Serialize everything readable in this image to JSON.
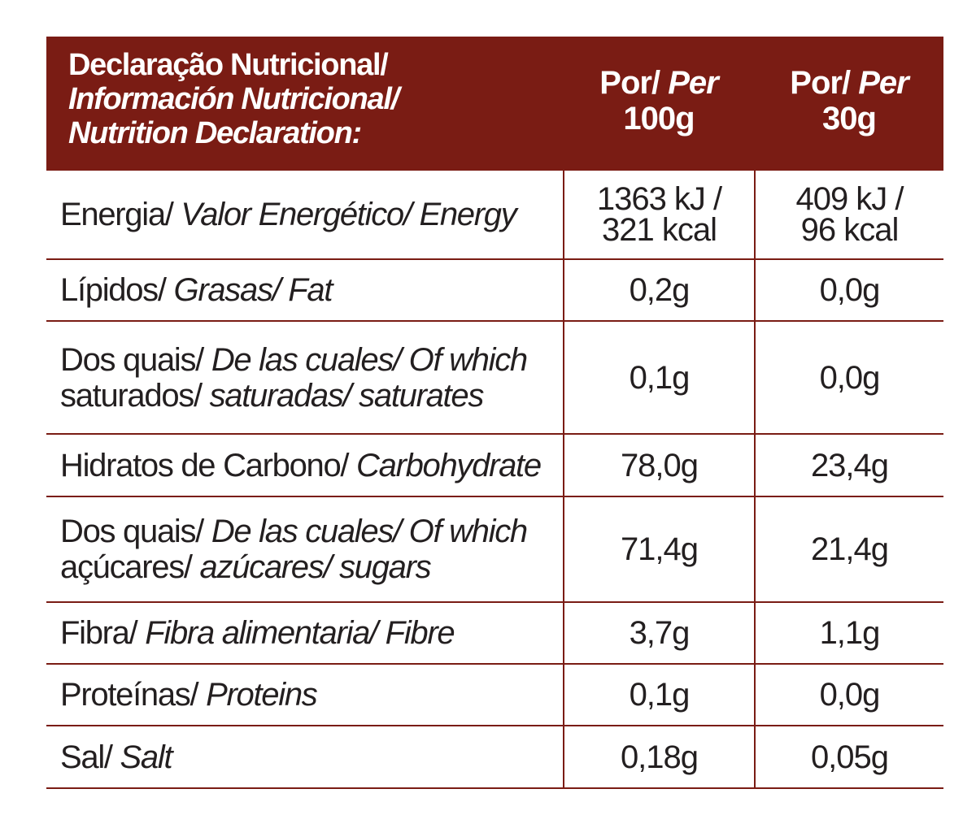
{
  "header": {
    "title_line1": "Declaração Nutricional/",
    "title_line2": "Información Nutricional/",
    "title_line3": "Nutrition Declaration:",
    "col100_por": "Por/ ",
    "col100_per": "Per",
    "col100_amount": "100g",
    "col30_por": "Por/ ",
    "col30_per": "Per",
    "col30_amount": "30g"
  },
  "rows": [
    {
      "label_plain": "Energia/ ",
      "label_italic": "Valor Energético/ Energy",
      "v100_line1": "1363 kJ /",
      "v100_line2": "321 kcal",
      "v30_line1": "409 kJ /",
      "v30_line2": "96 kcal"
    },
    {
      "label_plain": "Lípidos/ ",
      "label_italic": "Grasas/ Fat",
      "v100": "0,2g",
      "v30": "0,0g"
    },
    {
      "label1_plain": "Dos quais/ ",
      "label1_italic": "De las cuales/ Of which",
      "label2_plain": "saturados/ ",
      "label2_italic": "saturadas/ saturates",
      "v100": "0,1g",
      "v30": "0,0g"
    },
    {
      "label_plain": "Hidratos de Carbono/ ",
      "label_italic": "Carbohydrate",
      "v100": "78,0g",
      "v30": "23,4g"
    },
    {
      "label1_plain": "Dos quais/ ",
      "label1_italic": "De las cuales/ Of which",
      "label2_plain": "açúcares/ ",
      "label2_italic": "azúcares/ sugars",
      "v100": "71,4g",
      "v30": "21,4g"
    },
    {
      "label_plain": "Fibra/ ",
      "label_italic": "Fibra alimentaria/ Fibre",
      "v100": "3,7g",
      "v30": "1,1g"
    },
    {
      "label_plain": "Proteínas/ ",
      "label_italic": "Proteins",
      "v100": "0,1g",
      "v30": "0,0g"
    },
    {
      "label_plain": "Sal/ ",
      "label_italic": "Salt",
      "v100": "0,18g",
      "v30": "0,05g"
    }
  ],
  "colors": {
    "header_bg": "#7a1c14",
    "rule": "#7a1c14",
    "text": "#231f20"
  }
}
